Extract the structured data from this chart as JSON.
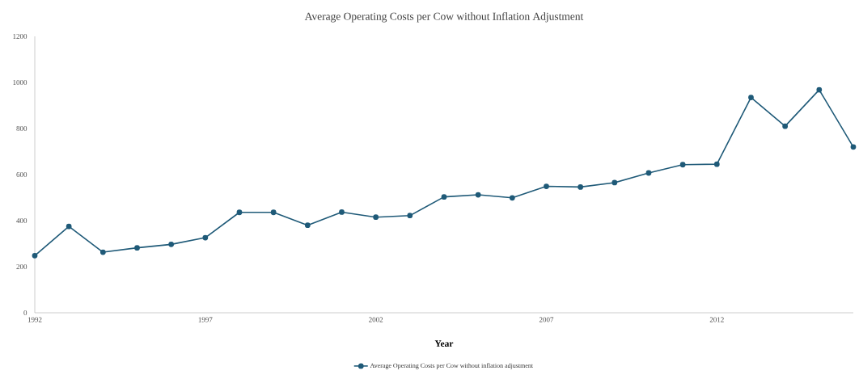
{
  "chart_data": {
    "type": "line",
    "title": "Average Operating Costs per Cow without Inflation Adjustment",
    "xlabel": "Year",
    "x": [
      1992,
      1993,
      1994,
      1995,
      1996,
      1997,
      1998,
      1999,
      2000,
      2001,
      2002,
      2003,
      2004,
      2005,
      2006,
      2007,
      2008,
      2009,
      2010,
      2011,
      2012,
      2013,
      2014,
      2015,
      2016
    ],
    "series": [
      {
        "name": "Average Operating Costs per Cow without inflation adjustment",
        "color": "#1f5a78",
        "values": [
          248,
          375,
          263,
          282,
          297,
          326,
          436,
          436,
          380,
          437,
          415,
          422,
          503,
          512,
          499,
          549,
          546,
          565,
          607,
          643,
          645,
          935,
          810,
          968,
          720
        ]
      }
    ],
    "xlim": [
      1992,
      2016
    ],
    "ylim": [
      0,
      1200
    ],
    "xticks": [
      1992,
      1997,
      2002,
      2007,
      2012
    ],
    "yticks": [
      0,
      200,
      400,
      600,
      800,
      1000,
      1200
    ],
    "grid": false,
    "legend": "bottom",
    "marker": "circle",
    "line_style": "solid"
  }
}
